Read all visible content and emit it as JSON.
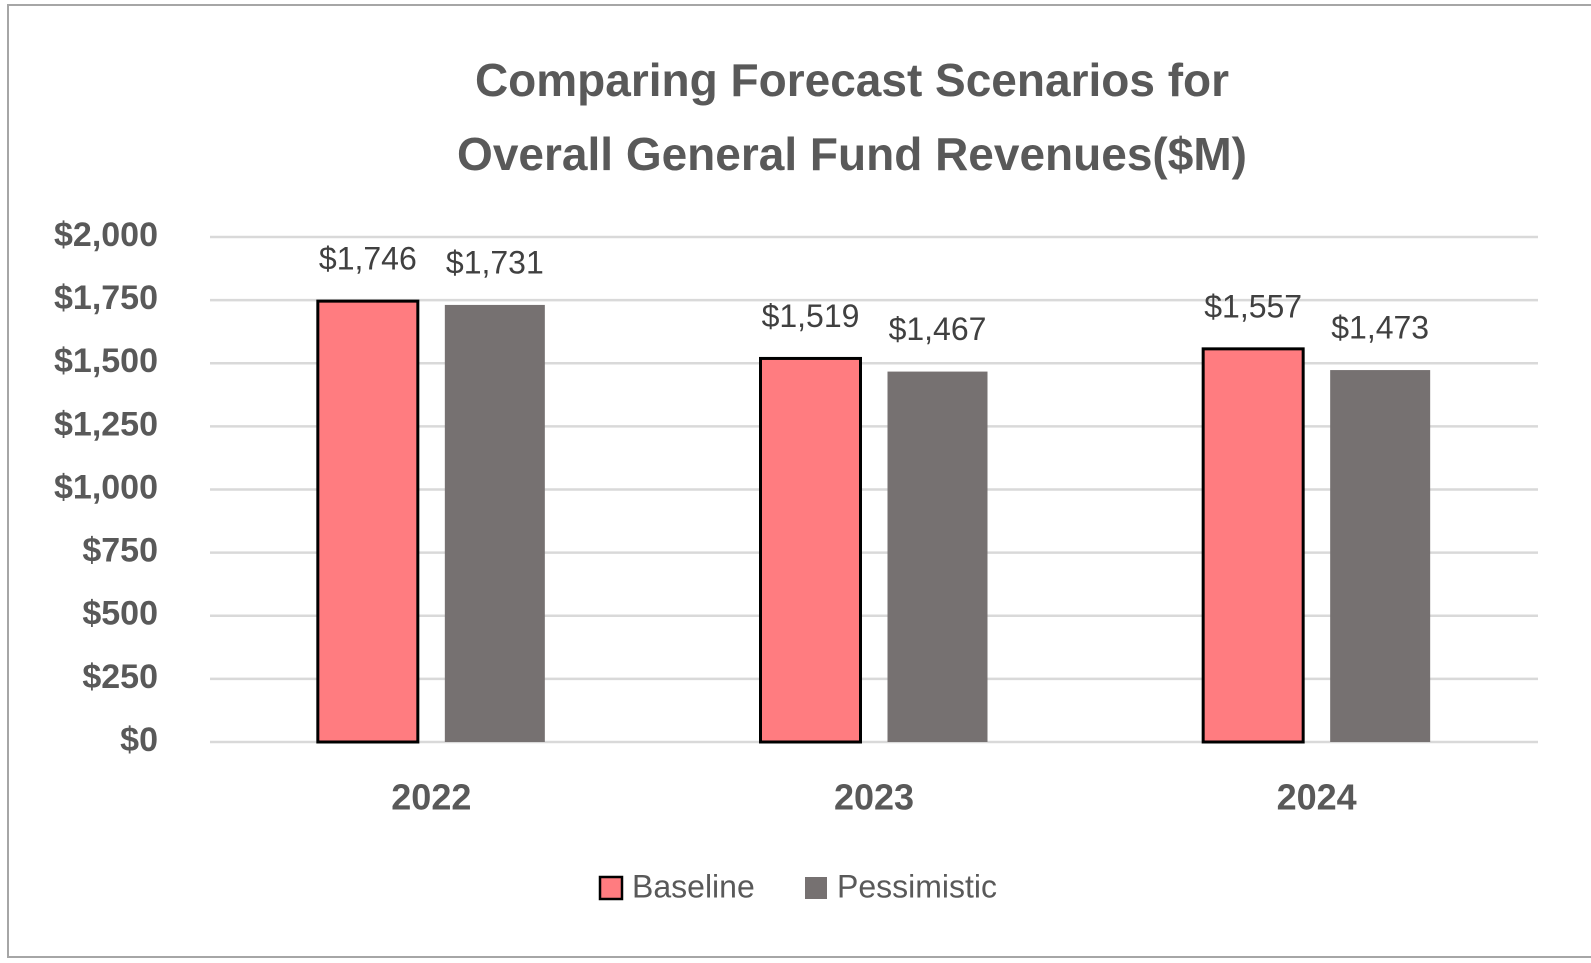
{
  "chart_data": {
    "type": "bar",
    "title": [
      "Comparing Forecast Scenarios for",
      "Overall General Fund Revenues($M)"
    ],
    "categories": [
      "2022",
      "2023",
      "2024"
    ],
    "series": [
      {
        "name": "Baseline",
        "color": "#ff7c80",
        "edgecolor": "#000000",
        "values": [
          1746,
          1519,
          1557
        ],
        "value_labels": [
          "$1,746",
          "$1,519",
          "$1,557"
        ]
      },
      {
        "name": "Pessimistic",
        "color": "#767171",
        "values": [
          1731,
          1467,
          1473
        ],
        "value_labels": [
          "$1,731",
          "$1,467",
          "$1,473"
        ]
      }
    ],
    "ylim": [
      0,
      2000
    ],
    "yticks": [
      {
        "value": 0,
        "label": "$0"
      },
      {
        "value": 250,
        "label": "$250"
      },
      {
        "value": 500,
        "label": "$500"
      },
      {
        "value": 750,
        "label": "$750"
      },
      {
        "value": 1000,
        "label": "$1,000"
      },
      {
        "value": 1250,
        "label": "$1,250"
      },
      {
        "value": 1500,
        "label": "$1,500"
      },
      {
        "value": 1750,
        "label": "$1,750"
      },
      {
        "value": 2000,
        "label": "$2,000"
      }
    ],
    "grid": true,
    "legend": "bottom"
  }
}
